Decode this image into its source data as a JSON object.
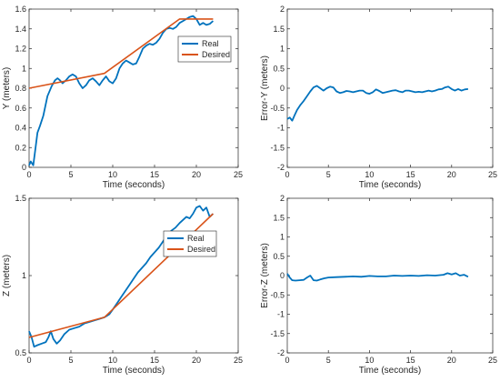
{
  "chart_data": [
    {
      "type": "line",
      "xlabel": "Time (seconds)",
      "ylabel": "Y (meters)",
      "xlim": [
        0,
        25
      ],
      "ylim": [
        0,
        1.6
      ],
      "xticks": [
        0,
        5,
        10,
        15,
        20,
        25
      ],
      "yticks": [
        0,
        0.2,
        0.4,
        0.6,
        0.8,
        1,
        1.2,
        1.4,
        1.6
      ],
      "legend": "top-right",
      "series": [
        {
          "name": "Real",
          "color": "#0072BD",
          "x": [
            0,
            0.2,
            0.5,
            0.8,
            1.0,
            1.3,
            1.7,
            2.2,
            2.7,
            3.1,
            3.4,
            3.7,
            4.0,
            4.4,
            4.8,
            5.2,
            5.6,
            6.0,
            6.4,
            6.8,
            7.2,
            7.6,
            8.0,
            8.4,
            8.8,
            9.2,
            9.6,
            10.0,
            10.4,
            10.8,
            11.2,
            11.6,
            12.0,
            12.4,
            12.8,
            13.2,
            13.6,
            14.0,
            14.4,
            14.8,
            15.2,
            15.6,
            16.0,
            16.4,
            16.8,
            17.2,
            17.6,
            18.0,
            18.4,
            18.8,
            19.2,
            19.6,
            20.0,
            20.4,
            20.8,
            21.2,
            21.6,
            22.0
          ],
          "y": [
            0.02,
            0.06,
            0.02,
            0.22,
            0.35,
            0.42,
            0.52,
            0.72,
            0.82,
            0.88,
            0.9,
            0.88,
            0.85,
            0.88,
            0.92,
            0.94,
            0.92,
            0.85,
            0.8,
            0.83,
            0.88,
            0.9,
            0.87,
            0.83,
            0.88,
            0.92,
            0.87,
            0.85,
            0.9,
            1.0,
            1.05,
            1.08,
            1.06,
            1.04,
            1.05,
            1.12,
            1.2,
            1.23,
            1.25,
            1.24,
            1.26,
            1.3,
            1.36,
            1.4,
            1.41,
            1.4,
            1.42,
            1.46,
            1.48,
            1.5,
            1.52,
            1.53,
            1.5,
            1.44,
            1.46,
            1.44,
            1.45,
            1.48
          ]
        },
        {
          "name": "Desired",
          "color": "#D95319",
          "x": [
            0,
            9,
            18,
            22
          ],
          "y": [
            0.8,
            0.95,
            1.5,
            1.5
          ]
        }
      ]
    },
    {
      "type": "line",
      "xlabel": "Time (seconds)",
      "ylabel": "Error-Y (meters)",
      "xlim": [
        0,
        25
      ],
      "ylim": [
        -2,
        2
      ],
      "xticks": [
        0,
        5,
        10,
        15,
        20,
        25
      ],
      "yticks": [
        -2,
        -1.5,
        -1,
        -0.5,
        0,
        0.5,
        1,
        1.5,
        2
      ],
      "series": [
        {
          "color": "#0072BD",
          "x": [
            0,
            0.3,
            0.6,
            0.9,
            1.2,
            1.6,
            2.0,
            2.4,
            2.8,
            3.2,
            3.6,
            4.0,
            4.4,
            4.8,
            5.2,
            5.6,
            6.0,
            6.4,
            6.8,
            7.2,
            7.6,
            8.0,
            8.4,
            8.8,
            9.2,
            9.6,
            10.0,
            10.4,
            10.8,
            11.2,
            11.6,
            12.0,
            12.4,
            12.8,
            13.2,
            13.6,
            14.0,
            14.4,
            14.8,
            15.2,
            15.6,
            16.0,
            16.4,
            16.8,
            17.2,
            17.6,
            18.0,
            18.4,
            18.8,
            19.2,
            19.6,
            20.0,
            20.4,
            20.8,
            21.2,
            21.6,
            22.0
          ],
          "y": [
            -0.78,
            -0.74,
            -0.82,
            -0.68,
            -0.55,
            -0.42,
            -0.32,
            -0.2,
            -0.08,
            0.02,
            0.06,
            0.0,
            -0.06,
            0.0,
            0.04,
            0.02,
            -0.08,
            -0.12,
            -0.1,
            -0.07,
            -0.08,
            -0.1,
            -0.08,
            -0.06,
            -0.06,
            -0.12,
            -0.14,
            -0.1,
            -0.03,
            -0.07,
            -0.12,
            -0.1,
            -0.08,
            -0.06,
            -0.05,
            -0.08,
            -0.1,
            -0.06,
            -0.06,
            -0.08,
            -0.1,
            -0.09,
            -0.1,
            -0.08,
            -0.06,
            -0.08,
            -0.06,
            -0.03,
            -0.02,
            0.02,
            0.04,
            -0.02,
            -0.06,
            -0.02,
            -0.06,
            -0.03,
            -0.02
          ]
        }
      ]
    },
    {
      "type": "line",
      "xlabel": "Time (seconds)",
      "ylabel": "Z (meters)",
      "xlim": [
        0,
        25
      ],
      "ylim": [
        0.5,
        1.5
      ],
      "xticks": [
        0,
        5,
        10,
        15,
        20,
        25
      ],
      "yticks": [
        0.5,
        1,
        1.5
      ],
      "legend": "top-right",
      "series": [
        {
          "name": "Real",
          "color": "#0072BD",
          "x": [
            0,
            0.3,
            0.6,
            1.0,
            1.5,
            2.0,
            2.3,
            2.6,
            2.9,
            3.3,
            3.7,
            4.2,
            4.8,
            5.4,
            6.0,
            6.6,
            7.2,
            7.8,
            8.4,
            9.0,
            9.3,
            9.6,
            10.0,
            10.5,
            11.0,
            11.5,
            12.0,
            12.5,
            13.0,
            13.5,
            14.0,
            14.5,
            15.0,
            15.5,
            16.0,
            16.5,
            17.0,
            17.5,
            18.0,
            18.4,
            18.8,
            19.2,
            19.6,
            20.0,
            20.4,
            20.8,
            21.2,
            21.6,
            22.0
          ],
          "y": [
            0.64,
            0.6,
            0.54,
            0.55,
            0.56,
            0.57,
            0.6,
            0.64,
            0.59,
            0.56,
            0.58,
            0.62,
            0.65,
            0.66,
            0.67,
            0.69,
            0.7,
            0.71,
            0.72,
            0.73,
            0.74,
            0.75,
            0.78,
            0.82,
            0.86,
            0.9,
            0.94,
            0.98,
            1.02,
            1.05,
            1.08,
            1.12,
            1.15,
            1.18,
            1.22,
            1.26,
            1.29,
            1.31,
            1.34,
            1.36,
            1.38,
            1.37,
            1.4,
            1.44,
            1.45,
            1.42,
            1.44,
            1.38,
            1.4
          ]
        },
        {
          "name": "Desired",
          "color": "#D95319",
          "x": [
            0,
            9,
            22
          ],
          "y": [
            0.6,
            0.73,
            1.4
          ]
        }
      ]
    },
    {
      "type": "line",
      "xlabel": "Time (seconds)",
      "ylabel": "Error-Z (meters)",
      "xlim": [
        0,
        25
      ],
      "ylim": [
        -2,
        2
      ],
      "xticks": [
        0,
        5,
        10,
        15,
        20,
        25
      ],
      "yticks": [
        -2,
        -1.5,
        -1,
        -0.5,
        0,
        0.5,
        1,
        1.5,
        2
      ],
      "series": [
        {
          "color": "#0072BD",
          "x": [
            0,
            0.3,
            0.6,
            1.0,
            1.5,
            2.0,
            2.4,
            2.8,
            3.2,
            3.6,
            4.0,
            4.5,
            5.0,
            6.0,
            7.0,
            8.0,
            9.0,
            10.0,
            11.0,
            12.0,
            13.0,
            14.0,
            15.0,
            16.0,
            17.0,
            18.0,
            19.0,
            19.5,
            20.0,
            20.5,
            21.0,
            21.5,
            22.0
          ],
          "y": [
            0.05,
            -0.05,
            -0.12,
            -0.13,
            -0.12,
            -0.11,
            -0.05,
            0.0,
            -0.12,
            -0.13,
            -0.1,
            -0.07,
            -0.05,
            -0.04,
            -0.03,
            -0.02,
            -0.03,
            -0.01,
            -0.02,
            -0.02,
            0.0,
            -0.01,
            0.0,
            -0.01,
            0.01,
            0.0,
            0.02,
            0.06,
            0.03,
            0.06,
            0.0,
            0.02,
            -0.03
          ]
        }
      ]
    }
  ]
}
